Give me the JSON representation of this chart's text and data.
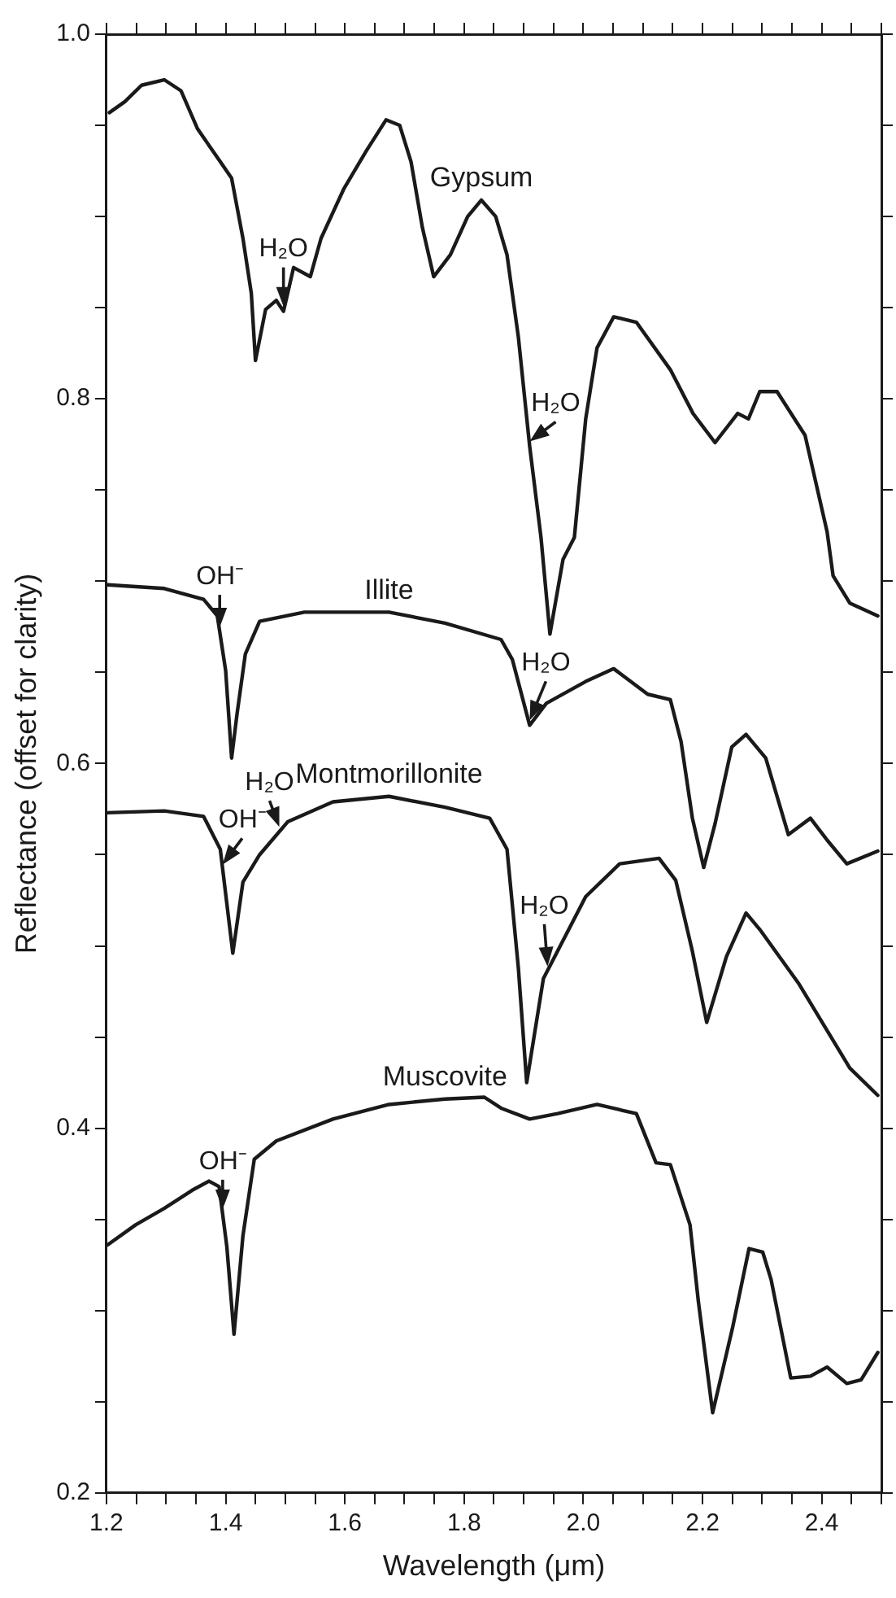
{
  "chart_data": {
    "type": "line",
    "xlabel": "Wavelength (μm)",
    "ylabel": "Reflectance (offset for clarity)",
    "xlim": [
      1.2,
      2.5
    ],
    "ylim": [
      0.2,
      1.0
    ],
    "xticks": [
      1.2,
      {
        "value": 1.25,
        "label": null
      },
      {
        "value": 1.3,
        "label": null
      },
      {
        "value": 1.35,
        "label": null
      },
      1.4,
      {
        "value": 1.45,
        "label": null
      },
      {
        "value": 1.5,
        "label": null
      },
      {
        "value": 1.55,
        "label": null
      },
      1.6,
      {
        "value": 1.65,
        "label": null
      },
      {
        "value": 1.7,
        "label": null
      },
      {
        "value": 1.75,
        "label": null
      },
      1.8,
      {
        "value": 1.85,
        "label": null
      },
      {
        "value": 1.9,
        "label": null
      },
      {
        "value": 1.95,
        "label": null
      },
      {
        "value": 2,
        "label": "2.0"
      },
      {
        "value": 2.05,
        "label": null
      },
      {
        "value": 2.1,
        "label": null
      },
      {
        "value": 2.15,
        "label": null
      },
      2.2,
      {
        "value": 2.25,
        "label": null
      },
      {
        "value": 2.3,
        "label": null
      },
      {
        "value": 2.35,
        "label": null
      },
      2.4,
      {
        "value": 2.45,
        "label": null
      },
      {
        "value": 2.5,
        "label": null
      }
    ],
    "yticks": [
      0.2,
      {
        "value": 0.25,
        "label": null
      },
      {
        "value": 0.3,
        "label": null
      },
      {
        "value": 0.35,
        "label": null
      },
      0.4,
      {
        "value": 0.45,
        "label": null
      },
      {
        "value": 0.5,
        "label": null
      },
      {
        "value": 0.55,
        "label": null
      },
      0.6,
      {
        "value": 0.65,
        "label": null
      },
      {
        "value": 0.7,
        "label": null
      },
      {
        "value": 0.75,
        "label": null
      },
      0.8,
      {
        "value": 0.85,
        "label": null
      },
      {
        "value": 0.9,
        "label": null
      },
      {
        "value": 0.95,
        "label": null
      },
      {
        "value": 1,
        "label": "1.0"
      }
    ],
    "grid": false,
    "legend": false,
    "marker": "none",
    "line_style": "solid",
    "series": [
      {
        "name": "Gypsum",
        "color": "#1a1a1a",
        "x": [
          1.205,
          1.231,
          1.259,
          1.297,
          1.325,
          1.353,
          1.391,
          1.41,
          1.429,
          1.443,
          1.45,
          1.467,
          1.485,
          1.497,
          1.514,
          1.542,
          1.56,
          1.598,
          1.636,
          1.669,
          1.692,
          1.711,
          1.73,
          1.749,
          1.777,
          1.806,
          1.829,
          1.853,
          1.872,
          1.891,
          1.91,
          1.929,
          1.944,
          1.966,
          1.985,
          2.004,
          2.023,
          2.051,
          2.089,
          2.146,
          2.184,
          2.221,
          2.259,
          2.277,
          2.296,
          2.325,
          2.372,
          2.409,
          2.419,
          2.447,
          2.494
        ],
        "values": [
          0.957,
          0.963,
          0.972,
          0.975,
          0.969,
          0.948,
          0.93,
          0.921,
          0.888,
          0.858,
          0.821,
          0.849,
          0.854,
          0.848,
          0.872,
          0.867,
          0.888,
          0.915,
          0.936,
          0.953,
          0.95,
          0.93,
          0.894,
          0.867,
          0.879,
          0.9,
          0.909,
          0.9,
          0.879,
          0.834,
          0.774,
          0.724,
          0.671,
          0.712,
          0.724,
          0.789,
          0.828,
          0.845,
          0.842,
          0.816,
          0.792,
          0.776,
          0.792,
          0.789,
          0.804,
          0.804,
          0.78,
          0.727,
          0.703,
          0.688,
          0.681
        ]
      },
      {
        "name": "Illite",
        "color": "#1a1a1a",
        "x": [
          1.202,
          1.297,
          1.363,
          1.386,
          1.4,
          1.41,
          1.419,
          1.433,
          1.457,
          1.532,
          1.674,
          1.768,
          1.862,
          1.881,
          1.91,
          1.938,
          2.004,
          2.051,
          2.108,
          2.146,
          2.164,
          2.183,
          2.202,
          2.221,
          2.249,
          2.273,
          2.306,
          2.344,
          2.381,
          2.409,
          2.442,
          2.494
        ],
        "values": [
          0.698,
          0.696,
          0.69,
          0.681,
          0.651,
          0.603,
          0.627,
          0.66,
          0.678,
          0.683,
          0.683,
          0.677,
          0.668,
          0.657,
          0.621,
          0.633,
          0.645,
          0.652,
          0.638,
          0.635,
          0.612,
          0.57,
          0.543,
          0.567,
          0.609,
          0.616,
          0.603,
          0.561,
          0.57,
          0.558,
          0.545,
          0.552
        ]
      },
      {
        "name": "Montmorillonite",
        "color": "#1a1a1a",
        "x": [
          1.202,
          1.297,
          1.363,
          1.391,
          1.412,
          1.429,
          1.457,
          1.504,
          1.58,
          1.674,
          1.768,
          1.843,
          1.872,
          1.891,
          1.905,
          1.933,
          2.004,
          2.061,
          2.127,
          2.155,
          2.183,
          2.207,
          2.24,
          2.273,
          2.296,
          2.362,
          2.447,
          2.494
        ],
        "values": [
          0.573,
          0.574,
          0.571,
          0.553,
          0.496,
          0.535,
          0.55,
          0.568,
          0.579,
          0.582,
          0.576,
          0.57,
          0.553,
          0.488,
          0.425,
          0.482,
          0.527,
          0.545,
          0.548,
          0.536,
          0.497,
          0.458,
          0.494,
          0.518,
          0.509,
          0.479,
          0.433,
          0.418
        ]
      },
      {
        "name": "Muscovite",
        "color": "#1a1a1a",
        "x": [
          1.202,
          1.249,
          1.297,
          1.344,
          1.372,
          1.389,
          1.402,
          1.414,
          1.429,
          1.448,
          1.485,
          1.58,
          1.674,
          1.768,
          1.834,
          1.862,
          1.91,
          1.957,
          2.023,
          2.089,
          2.122,
          2.146,
          2.179,
          2.193,
          2.217,
          2.25,
          2.278,
          2.301,
          2.315,
          2.348,
          2.381,
          2.409,
          2.442,
          2.466,
          2.494
        ],
        "values": [
          0.336,
          0.347,
          0.356,
          0.366,
          0.371,
          0.368,
          0.335,
          0.287,
          0.341,
          0.383,
          0.393,
          0.405,
          0.413,
          0.416,
          0.417,
          0.411,
          0.405,
          0.408,
          0.413,
          0.408,
          0.381,
          0.38,
          0.347,
          0.305,
          0.244,
          0.29,
          0.334,
          0.332,
          0.317,
          0.263,
          0.264,
          0.269,
          0.26,
          0.262,
          0.277
        ]
      }
    ],
    "annotations": [
      {
        "text": "H₂O",
        "x": 1.497,
        "y": 0.848
      },
      {
        "text": "H₂O",
        "x": 1.91,
        "y": 0.774
      },
      {
        "text": "OH⁻",
        "x": 1.39,
        "y": 0.672
      },
      {
        "text": "H₂O",
        "x": 1.91,
        "y": 0.621
      },
      {
        "text": "OH⁻",
        "x": 1.395,
        "y": 0.542
      },
      {
        "text": "H₂O",
        "x": 1.49,
        "y": 0.5626
      },
      {
        "text": "H₂O",
        "x": 1.94,
        "y": 0.486
      },
      {
        "text": "OH⁻",
        "x": 1.395,
        "y": 0.353
      }
    ]
  }
}
